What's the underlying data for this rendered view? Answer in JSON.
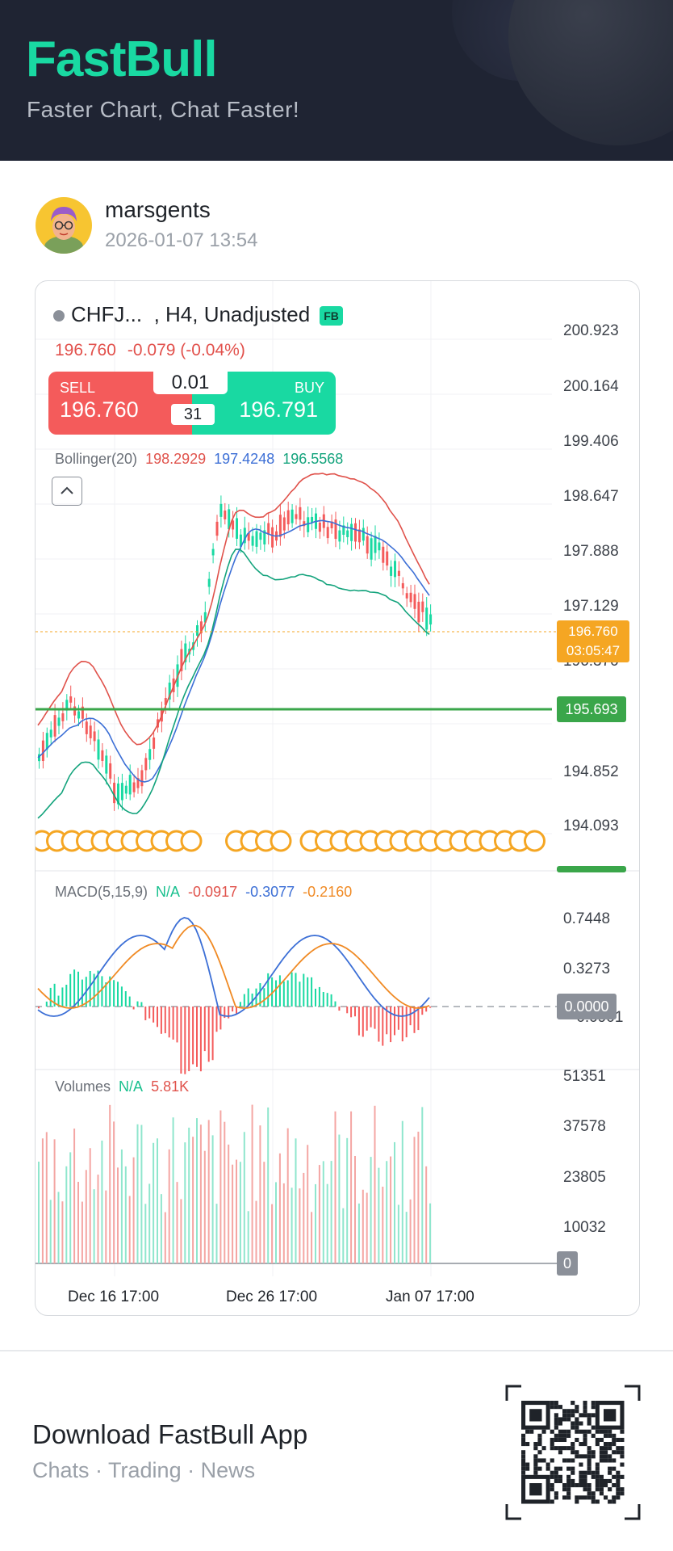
{
  "banner": {
    "logo": "FastBull",
    "tagline": "Faster Chart, Chat Faster!"
  },
  "post": {
    "username": "marsgents",
    "timestamp": "2026-01-07 13:54"
  },
  "chart": {
    "symbol": "CHFJ...",
    "timeframe": ", H4, Unadjusted",
    "badge": "FB",
    "last_price": "196.760",
    "change": "-0.079 (-0.04%)",
    "trade": {
      "sell_label": "SELL",
      "sell_price": "196.760",
      "buy_label": "BUY",
      "buy_price": "196.791",
      "lot": "0.01",
      "spread": "31"
    },
    "bollinger": {
      "label": "Bollinger(20)",
      "upper": "198.2929",
      "middle": "197.4248",
      "lower": "196.5568"
    },
    "price_axis": [
      "200.923",
      "200.164",
      "199.406",
      "198.647",
      "197.888",
      "197.129",
      "196.370",
      "194.852",
      "194.093"
    ],
    "price_tag": {
      "price": "196.760",
      "countdown": "03:05:47"
    },
    "line_tag": "195.693",
    "macd": {
      "label": "MACD(5,15,9)",
      "na": "N/A",
      "v1": "-0.0917",
      "v2": "-0.3077",
      "v3": "-0.2160",
      "axis": [
        "0.7448",
        "0.3273",
        "-0.0901"
      ],
      "zero_tag": "0.0000"
    },
    "volumes": {
      "label": "Volumes",
      "na": "N/A",
      "value": "5.81K",
      "axis": [
        "51351",
        "37578",
        "23805",
        "10032"
      ],
      "zero_tag": "0"
    },
    "x_axis": [
      "Dec 16 17:00",
      "Dec 26 17:00",
      "Jan 07 17:00"
    ],
    "colors": {
      "up": "#19d9a2",
      "down": "#f45b5b",
      "bb_upper": "#e0524b",
      "bb_middle": "#3c6fd6",
      "bb_lower": "#13a37c",
      "macd_line": "#3c6fd6",
      "signal_line": "#f08a24",
      "price_tag": "#f5a623",
      "hline": "#3aa64a",
      "event_marker": "#f5a623"
    }
  },
  "footer": {
    "title": "Download FastBull App",
    "subtitle": "Chats · Trading · News"
  }
}
